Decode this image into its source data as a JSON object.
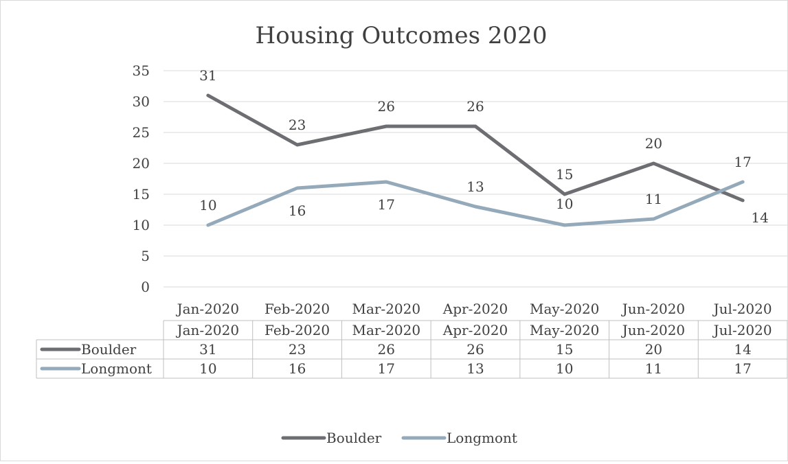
{
  "chart_data": {
    "type": "line",
    "title": "Housing Outcomes 2020",
    "categories": [
      "Jan-2020",
      "Feb-2020",
      "Mar-2020",
      "Apr-2020",
      "May-2020",
      "Jun-2020",
      "Jul-2020"
    ],
    "y_ticks": [
      "0",
      "5",
      "10",
      "15",
      "20",
      "25",
      "30",
      "35"
    ],
    "ylim": [
      0,
      35
    ],
    "grid": true,
    "legend_position": "bottom",
    "data_table": true,
    "series": [
      {
        "name": "Boulder",
        "values": [
          31,
          23,
          26,
          26,
          15,
          20,
          14
        ],
        "color": "#6d6e71"
      },
      {
        "name": "Longmont",
        "values": [
          10,
          16,
          17,
          13,
          10,
          11,
          17
        ],
        "color": "#94a9b9"
      }
    ]
  }
}
